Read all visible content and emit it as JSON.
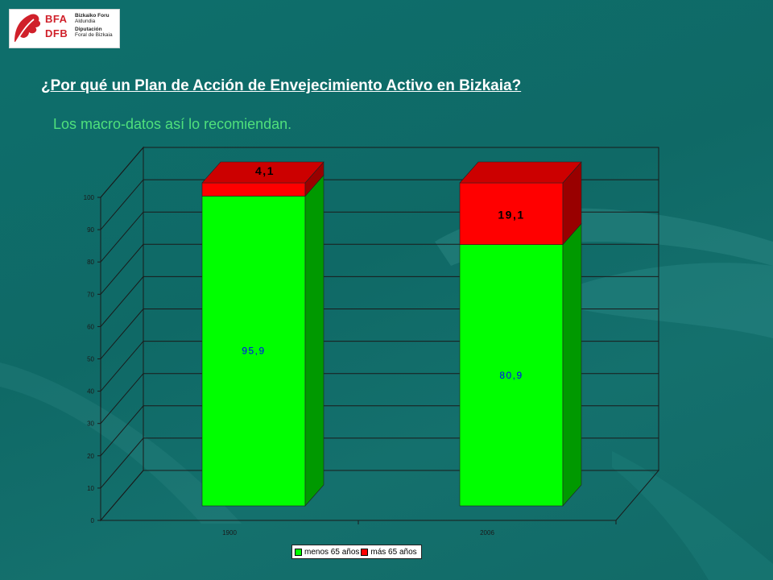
{
  "logo": {
    "abbr_line1": "BFA",
    "abbr_line2": "DFB",
    "name_line1": "Bizkaiko Foru",
    "name_line2": "Aldundia",
    "name_line3": "Diputación",
    "name_line4": "Foral de Bizkaia",
    "name_line5": "",
    "colors": {
      "brand": "#d0202a"
    }
  },
  "title": "¿Por qué un Plan de Acción de Envejecimiento Activo en Bizkaia?",
  "subtitle": "Los macro-datos así lo recomiendan.",
  "chart_data": {
    "type": "bar",
    "stacked": true,
    "three_d": true,
    "categories": [
      "1900",
      "2006"
    ],
    "series": [
      {
        "name": "menos 65 años",
        "values": [
          95.9,
          80.9
        ],
        "labels": [
          "95,9",
          "80,9"
        ],
        "color": "#00ff00",
        "label_color": "#0000ff"
      },
      {
        "name": "más 65 años",
        "values": [
          4.1,
          19.1
        ],
        "labels": [
          "4,1",
          "19,1"
        ],
        "color": "#ff0000",
        "label_color": "#000000"
      }
    ],
    "y_ticks": [
      "0",
      "10",
      "20",
      "30",
      "40",
      "50",
      "60",
      "70",
      "80",
      "90",
      "100"
    ],
    "ylim": [
      0,
      100
    ],
    "grid": true,
    "legend_position": "bottom",
    "title": "",
    "xlabel": "",
    "ylabel": ""
  }
}
